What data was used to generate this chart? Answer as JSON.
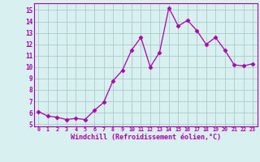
{
  "x": [
    0,
    1,
    2,
    3,
    4,
    5,
    6,
    7,
    8,
    9,
    10,
    11,
    12,
    13,
    14,
    15,
    16,
    17,
    18,
    19,
    20,
    21,
    22,
    23
  ],
  "y": [
    6.1,
    5.7,
    5.6,
    5.4,
    5.5,
    5.4,
    6.2,
    6.9,
    8.8,
    9.7,
    11.5,
    12.6,
    10.0,
    11.3,
    15.2,
    13.6,
    14.1,
    13.2,
    12.0,
    12.6,
    11.5,
    10.2,
    10.1,
    10.3
  ],
  "line_color": "#aa00aa",
  "marker": "D",
  "marker_size": 2.5,
  "bg_color": "#d8f0f0",
  "grid_color": "#aacccc",
  "xlabel": "Windchill (Refroidissement éolien,°C)",
  "xlabel_color": "#aa00aa",
  "ylim": [
    4.8,
    15.6
  ],
  "xlim": [
    -0.5,
    23.5
  ],
  "yticks": [
    5,
    6,
    7,
    8,
    9,
    10,
    11,
    12,
    13,
    14,
    15
  ],
  "xticks": [
    0,
    1,
    2,
    3,
    4,
    5,
    6,
    7,
    8,
    9,
    10,
    11,
    12,
    13,
    14,
    15,
    16,
    17,
    18,
    19,
    20,
    21,
    22,
    23
  ],
  "tick_label_color": "#aa00aa",
  "spine_color": "#aa00aa"
}
